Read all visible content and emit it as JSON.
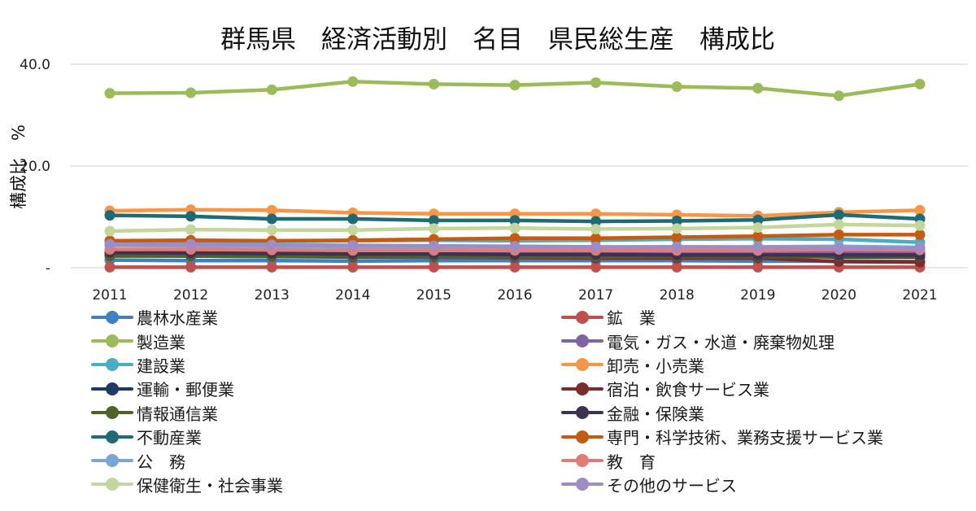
{
  "chart_data": {
    "type": "line",
    "title": "群馬県　経済活動別　名目　県民総生産　構成比",
    "ylabel": "構成比　%",
    "xlabel": "",
    "ylim": [
      0,
      40
    ],
    "yticks": [
      {
        "value": 0,
        "label": "-"
      },
      {
        "value": 20,
        "label": "20.0"
      },
      {
        "value": 40,
        "label": "40.0"
      }
    ],
    "categories": [
      "2011",
      "2012",
      "2013",
      "2014",
      "2015",
      "2016",
      "2017",
      "2018",
      "2019",
      "2020",
      "2021"
    ],
    "series": [
      {
        "name": "農林水産業",
        "color": "#3f7fc4",
        "values": [
          1.5,
          1.4,
          1.4,
          1.3,
          1.4,
          1.4,
          1.4,
          1.4,
          1.3,
          1.3,
          1.2
        ]
      },
      {
        "name": "鉱　業",
        "color": "#c0504d",
        "values": [
          0.1,
          0.1,
          0.1,
          0.1,
          0.1,
          0.1,
          0.1,
          0.1,
          0.1,
          0.1,
          0.1
        ]
      },
      {
        "name": "製造業",
        "color": "#9bbb59",
        "values": [
          34.3,
          34.4,
          35.0,
          36.6,
          36.1,
          35.9,
          36.4,
          35.6,
          35.3,
          33.8,
          36.1
        ]
      },
      {
        "name": "電気・ガス・水道・廃棄物処理",
        "color": "#8064a2",
        "values": [
          2.8,
          2.9,
          2.9,
          3.0,
          3.0,
          3.0,
          2.9,
          2.9,
          2.9,
          3.0,
          2.9
        ]
      },
      {
        "name": "建設業",
        "color": "#4bacc6",
        "values": [
          5.0,
          5.2,
          5.2,
          5.3,
          5.4,
          5.3,
          5.4,
          5.6,
          5.7,
          5.6,
          5.0
        ]
      },
      {
        "name": "卸売・小売業",
        "color": "#f79646",
        "values": [
          11.2,
          11.4,
          11.3,
          10.8,
          10.6,
          10.6,
          10.6,
          10.4,
          10.2,
          10.9,
          11.3
        ]
      },
      {
        "name": "運輸・郵便業",
        "color": "#1f3864",
        "values": [
          2.5,
          2.5,
          2.4,
          2.4,
          2.4,
          2.4,
          2.4,
          2.4,
          2.4,
          2.1,
          2.1
        ]
      },
      {
        "name": "宿泊・飲食サービス業",
        "color": "#7b2c2c",
        "values": [
          2.4,
          2.3,
          2.2,
          2.1,
          2.1,
          2.0,
          1.9,
          1.9,
          1.9,
          1.2,
          1.1
        ]
      },
      {
        "name": "情報通信業",
        "color": "#4f6228",
        "values": [
          2.3,
          2.3,
          2.2,
          2.2,
          2.1,
          2.1,
          2.1,
          2.2,
          2.2,
          2.3,
          2.3
        ]
      },
      {
        "name": "金融・保険業",
        "color": "#3f3151",
        "values": [
          3.0,
          2.9,
          2.8,
          2.7,
          2.7,
          2.6,
          2.6,
          2.5,
          2.5,
          2.5,
          2.5
        ]
      },
      {
        "name": "不動産業",
        "color": "#1f6b75",
        "values": [
          10.3,
          10.1,
          9.6,
          9.6,
          9.3,
          9.3,
          9.1,
          9.2,
          9.4,
          10.4,
          9.6
        ]
      },
      {
        "name": "専門・科学技術、業務支援サービス業",
        "color": "#c55a11",
        "values": [
          5.3,
          5.4,
          5.3,
          5.4,
          5.6,
          5.8,
          5.8,
          6.0,
          6.2,
          6.5,
          6.5
        ]
      },
      {
        "name": "公　務",
        "color": "#7aa6d4",
        "values": [
          4.4,
          4.3,
          4.2,
          4.1,
          4.1,
          4.1,
          4.0,
          4.1,
          4.1,
          4.2,
          4.0
        ]
      },
      {
        "name": "教　育",
        "color": "#e07b76",
        "values": [
          3.6,
          3.6,
          3.5,
          3.4,
          3.4,
          3.4,
          3.4,
          3.4,
          3.4,
          3.6,
          3.5
        ]
      },
      {
        "name": "保健衛生・社会事業",
        "color": "#c3d69b",
        "values": [
          7.2,
          7.5,
          7.4,
          7.4,
          7.7,
          7.8,
          7.6,
          7.7,
          7.9,
          8.5,
          8.3
        ]
      },
      {
        "name": "その他のサービス",
        "color": "#a08cc4",
        "values": [
          4.6,
          4.6,
          4.5,
          4.4,
          4.3,
          4.2,
          4.1,
          4.1,
          4.0,
          3.9,
          3.8
        ]
      }
    ]
  }
}
